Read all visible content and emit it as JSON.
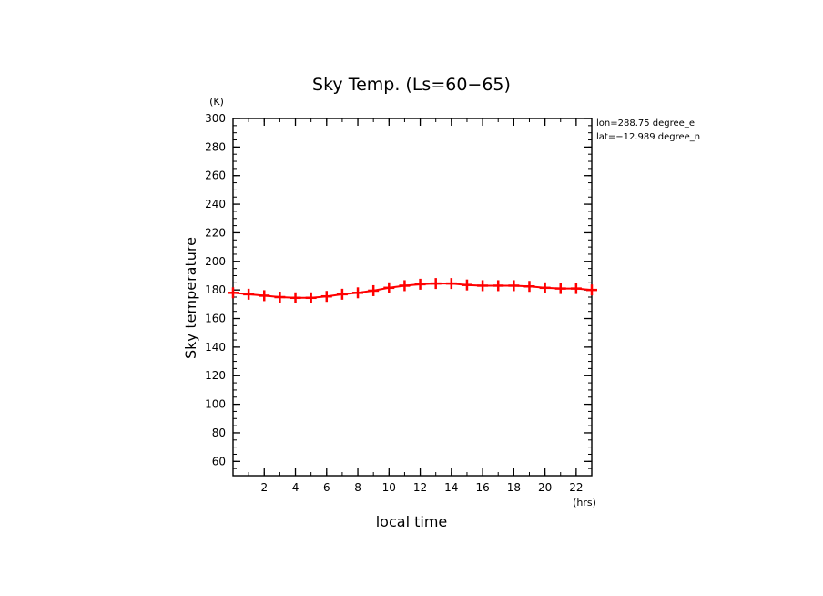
{
  "chart_data": {
    "type": "line",
    "title": "Sky Temp. (Ls=60−65)",
    "ylabel": "Sky temperature",
    "xlabel": "local time",
    "y_unit": "(K)",
    "x_unit": "(hrs)",
    "annotations": [
      "lon=288.75 degree_e",
      "lat=−12.989 degree_n"
    ],
    "xlim": [
      0,
      23
    ],
    "ylim": [
      50,
      300
    ],
    "xticks": [
      2,
      4,
      6,
      8,
      10,
      12,
      14,
      16,
      18,
      20,
      22
    ],
    "yticks": [
      60,
      80,
      100,
      120,
      140,
      160,
      180,
      200,
      220,
      240,
      260,
      280,
      300
    ],
    "grid": false,
    "marker": "plus",
    "series_color": "#ff0000",
    "series": [
      {
        "x": [
          0,
          1,
          2,
          3,
          4,
          5,
          6,
          7,
          8,
          9,
          10,
          11,
          12,
          13,
          14,
          15,
          16,
          17,
          18,
          19,
          20,
          21,
          22,
          23
        ],
        "values": [
          178,
          177,
          176,
          175,
          174.5,
          174.5,
          175.5,
          177,
          178,
          179.5,
          181.5,
          183,
          184,
          184.5,
          184.5,
          183.5,
          183,
          183,
          183,
          182.5,
          181.5,
          181,
          181,
          180
        ]
      }
    ]
  }
}
